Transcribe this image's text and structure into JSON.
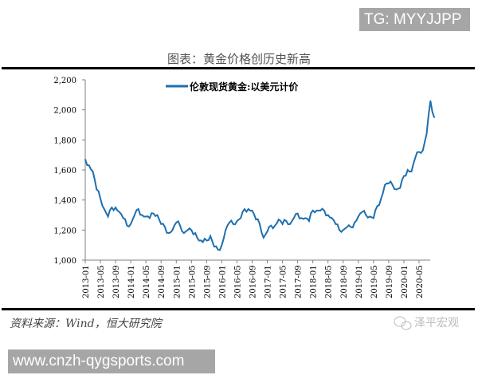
{
  "watermark_top": "TG: MYYJJPP",
  "watermark_bottom": "www.cnzh-qygsports.com",
  "source": "资料来源：Wind，恒大研究院",
  "wechat_brand": "泽平宏观",
  "colors": {
    "series": "#1f6fae",
    "axis": "#808080",
    "rule": "#000000"
  },
  "chart_data": {
    "type": "line",
    "title": "图表：黄金价格创历史新高",
    "xlabel": "",
    "ylabel": "",
    "ylim": [
      1000,
      2200
    ],
    "yticks": [
      "1,000",
      "1,200",
      "1,400",
      "1,600",
      "1,800",
      "2,000",
      "2,200"
    ],
    "xticks": [
      "2013-01",
      "2013-05",
      "2013-09",
      "2014-01",
      "2014-05",
      "2014-09",
      "2015-01",
      "2015-05",
      "2015-09",
      "2016-01",
      "2016-05",
      "2016-09",
      "2017-01",
      "2017-05",
      "2017-09",
      "2018-01",
      "2018-05",
      "2018-09",
      "2019-01",
      "2019-05",
      "2019-09",
      "2020-01",
      "2020-05"
    ],
    "grid": false,
    "legend": "top-center",
    "series": [
      {
        "name": "伦敦现货黄金:以美元计价",
        "start": "2013-01",
        "frequency": "monthly",
        "values": [
          1670,
          1630,
          1590,
          1470,
          1410,
          1340,
          1290,
          1350,
          1350,
          1320,
          1280,
          1230,
          1240,
          1300,
          1340,
          1300,
          1290,
          1280,
          1310,
          1300,
          1240,
          1220,
          1180,
          1200,
          1250,
          1230,
          1180,
          1200,
          1200,
          1180,
          1130,
          1120,
          1130,
          1160,
          1090,
          1070,
          1100,
          1200,
          1250,
          1240,
          1260,
          1280,
          1340,
          1340,
          1330,
          1270,
          1240,
          1150,
          1190,
          1230,
          1230,
          1270,
          1240,
          1260,
          1240,
          1280,
          1310,
          1280,
          1280,
          1260,
          1330,
          1330,
          1330,
          1330,
          1300,
          1280,
          1240,
          1200,
          1200,
          1220,
          1220,
          1250,
          1290,
          1320,
          1300,
          1290,
          1280,
          1360,
          1410,
          1500,
          1510,
          1500,
          1470,
          1480,
          1560,
          1600,
          1590,
          1680,
          1720,
          1730,
          1840,
          2060,
          1950
        ]
      }
    ]
  }
}
